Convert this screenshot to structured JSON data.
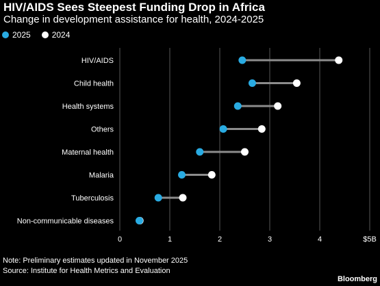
{
  "header": {
    "title": "HIV/AIDS Sees Steepest Funding Drop in Africa",
    "subtitle": "Change in development assistance for health, 2024-2025"
  },
  "legend": {
    "items": [
      {
        "label": "2025",
        "color": "#29abe2"
      },
      {
        "label": "2024",
        "color": "#ffffff"
      }
    ]
  },
  "chart_data": {
    "type": "dumbbell",
    "title": "HIV/AIDS Sees Steepest Funding Drop in Africa",
    "subtitle": "Change in development assistance for health, 2024-2025",
    "xlabel": "",
    "ylabel": "",
    "xlim": [
      0,
      5
    ],
    "x_ticks": [
      0,
      1,
      2,
      3,
      4,
      5
    ],
    "x_tick_labels": [
      "0",
      "1",
      "2",
      "3",
      "4",
      "$5B"
    ],
    "categories": [
      "HIV/AIDS",
      "Child health",
      "Health systems",
      "Others",
      "Maternal health",
      "Malaria",
      "Tuberculosis",
      "Non-communicable diseases"
    ],
    "series": [
      {
        "name": "2025",
        "color": "#29abe2",
        "values": [
          2.45,
          2.65,
          2.36,
          2.07,
          1.6,
          1.24,
          0.77,
          0.39
        ]
      },
      {
        "name": "2024",
        "color": "#ffffff",
        "values": [
          4.38,
          3.54,
          3.16,
          2.84,
          2.5,
          1.84,
          1.26,
          0.4
        ]
      }
    ],
    "grid": true,
    "legend_position": "top-left"
  },
  "footer": {
    "note": "Note: Preliminary estimates updated in November 2025",
    "source": "Source: Institute for Health Metrics and Evaluation",
    "brand": "Bloomberg"
  }
}
